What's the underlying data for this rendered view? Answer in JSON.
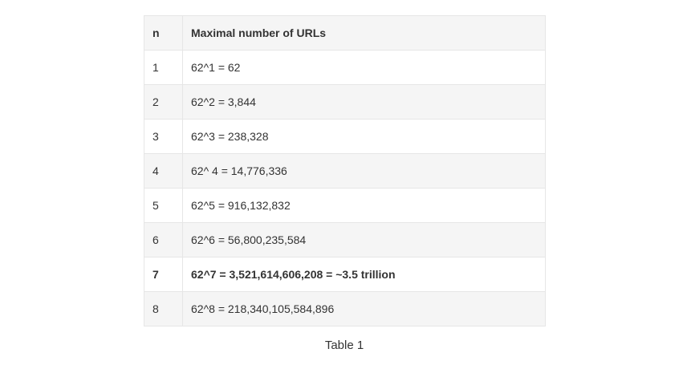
{
  "table": {
    "headers": [
      "n",
      "Maximal number of URLs"
    ],
    "rows": [
      {
        "n": "1",
        "value": "62^1 = 62",
        "bold": false
      },
      {
        "n": "2",
        "value": "62^2 = 3,844",
        "bold": false
      },
      {
        "n": "3",
        "value": "62^3 = 238,328",
        "bold": false
      },
      {
        "n": "4",
        "value": "62^ 4 = 14,776,336",
        "bold": false
      },
      {
        "n": "5",
        "value": "62^5 = 916,132,832",
        "bold": false
      },
      {
        "n": "6",
        "value": "62^6 = 56,800,235,584",
        "bold": false
      },
      {
        "n": "7",
        "value": "62^7 = 3,521,614,606,208 = ~3.5 trillion",
        "bold": true
      },
      {
        "n": "8",
        "value": "62^8 = 218,340,105,584,896",
        "bold": false
      }
    ]
  },
  "caption": "Table 1"
}
